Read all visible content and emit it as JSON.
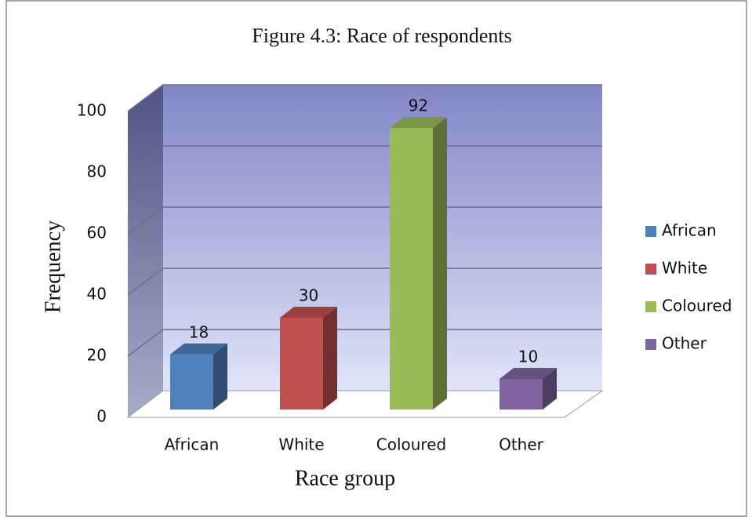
{
  "chart_data": {
    "type": "bar3d",
    "title": "Figure 4.3: Race of respondents",
    "x_label": "Race group",
    "y_label": "Frequency",
    "categories": [
      "African",
      "White",
      "Coloured",
      "Other"
    ],
    "values": [
      18,
      30,
      92,
      10
    ],
    "colors": [
      "#4f81bd",
      "#c0504d",
      "#9bbb59",
      "#8064a2"
    ],
    "ylim": [
      0,
      100
    ],
    "yticks": [
      0,
      20,
      40,
      60,
      80,
      100
    ],
    "grid": true,
    "legend": "right"
  }
}
